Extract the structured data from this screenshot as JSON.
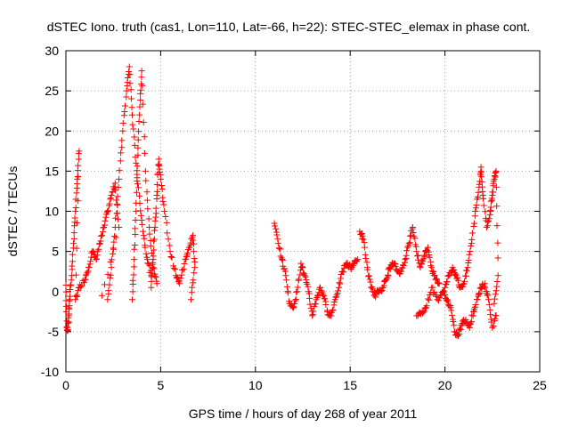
{
  "chart_data": {
    "type": "scatter",
    "title": "dSTEC Iono. truth (cas1, Lon=110, Lat=-66, h=22): STEC-STEC_elemax in phase cont.",
    "xlabel": "GPS time / hours of day 268 of year 2011",
    "ylabel": "dSTEC  / TECUs",
    "xlim": [
      0,
      25
    ],
    "ylim": [
      -10,
      30
    ],
    "xticks": [
      0,
      5,
      10,
      15,
      20,
      25
    ],
    "yticks": [
      -10,
      -5,
      0,
      5,
      10,
      15,
      20,
      25,
      30
    ],
    "grid": true,
    "legend": "none",
    "marker": "+",
    "series_color": "#ff0000",
    "series": [
      {
        "points": [
          [
            0.0,
            0.8
          ],
          [
            0.05,
            -4.5
          ],
          [
            0.1,
            -4.8
          ],
          [
            0.15,
            -3.0
          ],
          [
            0.2,
            -1.0
          ],
          [
            0.3,
            2.0
          ],
          [
            0.4,
            6.0
          ],
          [
            0.5,
            10.0
          ],
          [
            0.6,
            14.0
          ],
          [
            0.7,
            17.5
          ],
          [
            0.5,
            -1.0
          ],
          [
            0.7,
            0.5
          ],
          [
            1.0,
            1.5
          ],
          [
            1.2,
            3.0
          ],
          [
            1.4,
            5.0
          ],
          [
            1.6,
            4.0
          ],
          [
            1.8,
            6.0
          ],
          [
            2.0,
            8.0
          ],
          [
            2.2,
            10.0
          ],
          [
            2.4,
            12.0
          ],
          [
            2.6,
            13.5
          ],
          [
            2.8,
            8.0
          ],
          [
            1.9,
            -0.5
          ]
        ]
      },
      {
        "points": [
          [
            2.2,
            -1.0
          ],
          [
            2.4,
            3.0
          ],
          [
            2.6,
            8.0
          ],
          [
            2.8,
            14.0
          ],
          [
            3.0,
            20.0
          ],
          [
            3.2,
            25.0
          ],
          [
            3.35,
            28.0
          ],
          [
            3.5,
            22.0
          ],
          [
            3.7,
            16.0
          ],
          [
            3.9,
            11.0
          ],
          [
            4.1,
            7.0
          ],
          [
            4.3,
            4.0
          ],
          [
            4.5,
            2.0
          ]
        ]
      },
      {
        "points": [
          [
            3.5,
            -1.0
          ],
          [
            3.6,
            4.0
          ],
          [
            3.7,
            10.0
          ],
          [
            3.8,
            17.0
          ],
          [
            3.9,
            23.0
          ],
          [
            4.0,
            27.5
          ],
          [
            4.2,
            15.0
          ],
          [
            4.4,
            8.0
          ],
          [
            4.6,
            3.0
          ],
          [
            4.8,
            1.0
          ]
        ]
      },
      {
        "points": [
          [
            4.5,
            0.5
          ],
          [
            4.6,
            4.0
          ],
          [
            4.7,
            8.0
          ],
          [
            4.8,
            12.0
          ],
          [
            4.9,
            16.5
          ],
          [
            5.0,
            14.0
          ],
          [
            5.2,
            10.0
          ],
          [
            5.5,
            5.0
          ],
          [
            5.8,
            2.0
          ],
          [
            6.0,
            1.0
          ],
          [
            6.3,
            4.0
          ],
          [
            6.5,
            5.5
          ],
          [
            6.7,
            7.0
          ],
          [
            6.8,
            3.0
          ],
          [
            6.6,
            -1.0
          ]
        ]
      },
      {
        "points": [
          [
            11.0,
            8.5
          ],
          [
            11.2,
            6.0
          ],
          [
            11.4,
            4.0
          ],
          [
            11.6,
            2.0
          ],
          [
            11.8,
            -1.5
          ],
          [
            12.0,
            -2.0
          ],
          [
            12.2,
            0.0
          ],
          [
            12.4,
            3.5
          ],
          [
            12.6,
            2.0
          ],
          [
            12.8,
            0.0
          ],
          [
            13.0,
            -3.0
          ],
          [
            13.2,
            -1.0
          ],
          [
            13.4,
            0.5
          ],
          [
            13.6,
            -0.5
          ],
          [
            13.8,
            -2.5
          ],
          [
            14.0,
            -3.0
          ],
          [
            14.2,
            -1.0
          ],
          [
            14.4,
            0.5
          ],
          [
            14.6,
            2.5
          ],
          [
            14.8,
            3.5
          ],
          [
            15.0,
            3.0
          ],
          [
            15.2,
            3.5
          ],
          [
            15.4,
            4.0
          ]
        ]
      },
      {
        "points": [
          [
            15.5,
            7.5
          ],
          [
            15.7,
            6.5
          ],
          [
            15.9,
            3.0
          ],
          [
            16.1,
            0.5
          ],
          [
            16.3,
            -0.5
          ],
          [
            16.5,
            0.0
          ],
          [
            16.7,
            0.5
          ],
          [
            16.9,
            1.5
          ],
          [
            17.1,
            3.0
          ],
          [
            17.3,
            3.5
          ],
          [
            17.5,
            2.5
          ],
          [
            17.7,
            2.5
          ],
          [
            17.9,
            4.0
          ],
          [
            18.1,
            6.0
          ],
          [
            18.3,
            8.0
          ],
          [
            18.5,
            5.0
          ],
          [
            18.7,
            3.0
          ],
          [
            18.9,
            4.5
          ],
          [
            19.1,
            5.5
          ],
          [
            19.3,
            3.0
          ],
          [
            19.5,
            1.5
          ],
          [
            19.7,
            1.0
          ]
        ]
      },
      {
        "points": [
          [
            18.5,
            -3.0
          ],
          [
            18.8,
            -2.5
          ],
          [
            19.0,
            -2.0
          ],
          [
            19.3,
            0.5
          ],
          [
            19.6,
            -1.0
          ],
          [
            19.9,
            0.0
          ],
          [
            20.1,
            -1.0
          ],
          [
            20.3,
            -2.0
          ],
          [
            20.5,
            -5.0
          ],
          [
            20.7,
            -5.5
          ],
          [
            20.9,
            -4.0
          ],
          [
            21.1,
            -3.5
          ],
          [
            21.3,
            -4.5
          ],
          [
            21.5,
            -2.5
          ],
          [
            21.7,
            -1.0
          ],
          [
            21.9,
            0.5
          ],
          [
            22.1,
            1.0
          ],
          [
            22.3,
            -1.0
          ],
          [
            22.5,
            -4.5
          ],
          [
            22.7,
            -3.0
          ]
        ]
      },
      {
        "points": [
          [
            20.0,
            0.5
          ],
          [
            20.2,
            2.0
          ],
          [
            20.4,
            3.0
          ],
          [
            20.6,
            2.0
          ],
          [
            20.8,
            0.5
          ],
          [
            21.0,
            1.0
          ],
          [
            21.2,
            3.0
          ],
          [
            21.4,
            6.0
          ],
          [
            21.6,
            10.0
          ],
          [
            21.8,
            13.0
          ],
          [
            21.9,
            15.5
          ],
          [
            22.0,
            12.0
          ],
          [
            22.2,
            8.0
          ],
          [
            22.4,
            10.0
          ],
          [
            22.5,
            12.0
          ],
          [
            22.6,
            14.0
          ],
          [
            22.7,
            15.0
          ],
          [
            22.8,
            2.0
          ],
          [
            22.6,
            -1.5
          ]
        ]
      }
    ]
  }
}
